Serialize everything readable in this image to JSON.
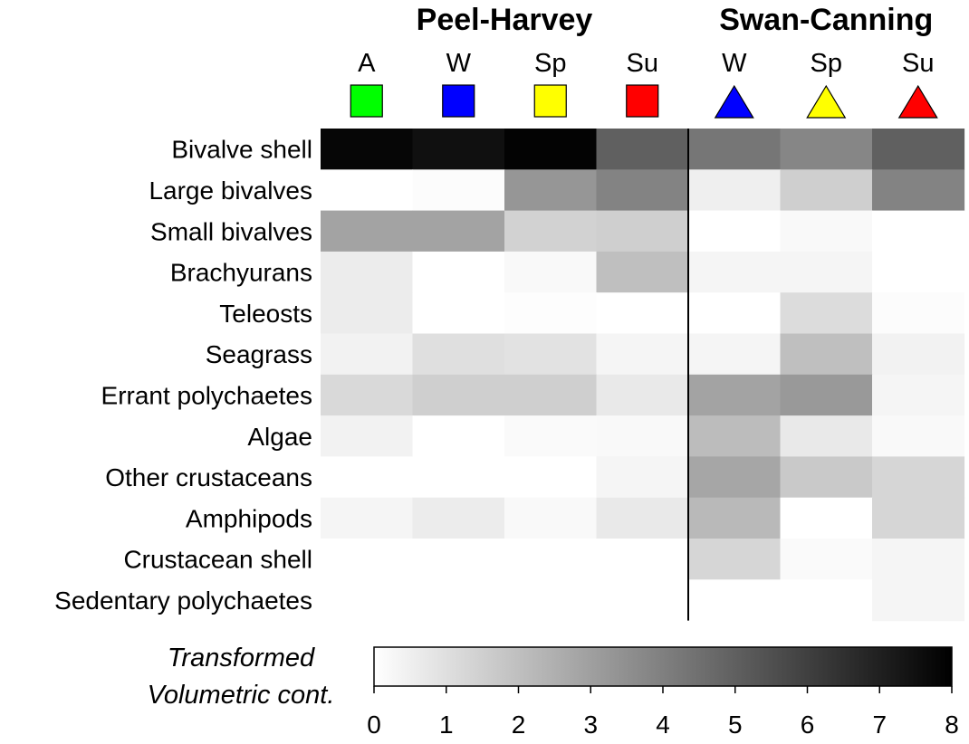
{
  "chart_data": {
    "type": "heatmap",
    "groups": [
      {
        "name": "Peel-Harvey",
        "columns": [
          0,
          1,
          2,
          3
        ]
      },
      {
        "name": "Swan-Canning",
        "columns": [
          4,
          5,
          6
        ]
      }
    ],
    "columns": [
      {
        "label": "A",
        "group": "Peel-Harvey",
        "marker": "square",
        "color": "#00ff00"
      },
      {
        "label": "W",
        "group": "Peel-Harvey",
        "marker": "square",
        "color": "#0000ff"
      },
      {
        "label": "Sp",
        "group": "Peel-Harvey",
        "marker": "square",
        "color": "#ffff00"
      },
      {
        "label": "Su",
        "group": "Peel-Harvey",
        "marker": "square",
        "color": "#ff0000"
      },
      {
        "label": "W",
        "group": "Swan-Canning",
        "marker": "triangle",
        "color": "#0000ff"
      },
      {
        "label": "Sp",
        "group": "Swan-Canning",
        "marker": "triangle",
        "color": "#ffff00"
      },
      {
        "label": "Su",
        "group": "Swan-Canning",
        "marker": "triangle",
        "color": "#ff0000"
      }
    ],
    "rows": [
      "Bivalve shell",
      "Large bivalves",
      "Small bivalves",
      "Brachyurans",
      "Teleosts",
      "Seagrass",
      "Errant polychaetes",
      "Algae",
      "Other crustaceans",
      "Amphipods",
      "Crustacean shell",
      "Sedentary polychaetes"
    ],
    "values": [
      [
        7.8,
        7.5,
        7.9,
        5.0,
        4.3,
        3.8,
        5.0
      ],
      [
        0.0,
        0.1,
        3.3,
        3.9,
        0.5,
        1.5,
        3.9
      ],
      [
        2.9,
        2.9,
        1.4,
        1.5,
        0.0,
        0.2,
        0.0
      ],
      [
        0.6,
        0.0,
        0.2,
        2.0,
        0.3,
        0.3,
        0.0
      ],
      [
        0.6,
        0.0,
        0.05,
        0.0,
        0.0,
        1.1,
        0.1
      ],
      [
        0.4,
        1.0,
        0.9,
        0.3,
        0.3,
        2.0,
        0.4
      ],
      [
        1.2,
        1.5,
        1.5,
        0.7,
        2.9,
        3.2,
        0.3
      ],
      [
        0.4,
        0.0,
        0.15,
        0.2,
        2.1,
        0.7,
        0.2
      ],
      [
        0.0,
        0.0,
        0.0,
        0.3,
        2.8,
        1.7,
        1.3
      ],
      [
        0.3,
        0.6,
        0.2,
        0.7,
        2.2,
        0.0,
        1.3
      ],
      [
        0.0,
        0.0,
        0.0,
        0.0,
        1.3,
        0.15,
        0.3
      ],
      [
        0.0,
        0.0,
        0.0,
        0.0,
        0.0,
        0.0,
        0.3
      ]
    ],
    "colorscale": {
      "title_line1": "Transformed",
      "title_line2": "Volumetric cont.",
      "min": 0,
      "max": 8,
      "ticks": [
        "0",
        "1",
        "2",
        "3",
        "4",
        "5",
        "6",
        "7",
        "8"
      ],
      "low_color": "#ffffff",
      "high_color": "#000000"
    }
  }
}
